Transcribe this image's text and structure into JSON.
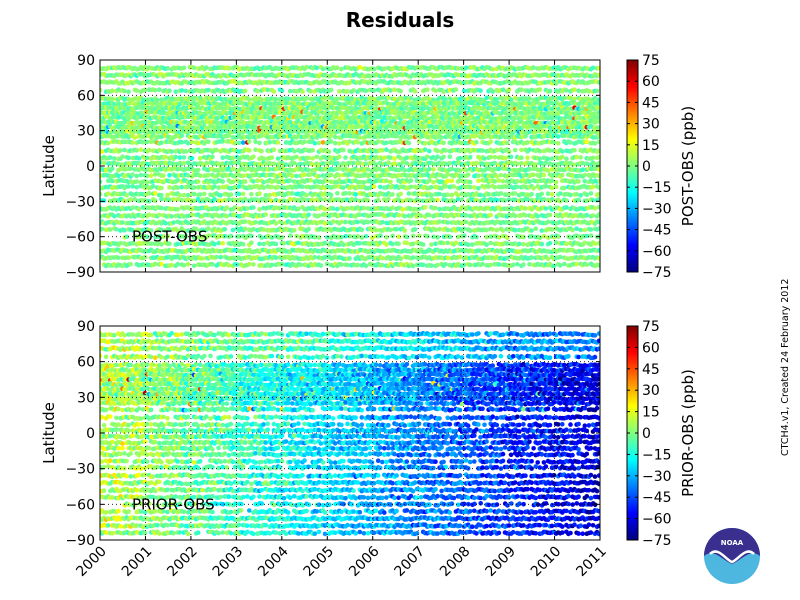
{
  "title": "Residuals",
  "colors": {
    "jet": [
      "#00007f",
      "#0000ff",
      "#007fff",
      "#00ffff",
      "#7fff7f",
      "#ffff00",
      "#ff7f00",
      "#ff0000",
      "#7f0000"
    ],
    "white_gaps": "#ffffff"
  },
  "chart_data": [
    {
      "type": "heatmap",
      "panel": "top",
      "annotation": "POST-OBS",
      "ylabel": "Latitude",
      "xlabel": "",
      "xlim": [
        2000,
        2011
      ],
      "ylim": [
        -90,
        90
      ],
      "yticks": [
        "90",
        "60",
        "30",
        "0",
        "−30",
        "−60",
        "−90"
      ],
      "ytick_values": [
        90,
        60,
        30,
        0,
        -30,
        -60,
        -90
      ],
      "xticks": [
        "2000",
        "2001",
        "2002",
        "2003",
        "2004",
        "2005",
        "2006",
        "2007",
        "2008",
        "2009",
        "2010",
        "2011"
      ],
      "xtick_values": [
        2000,
        2001,
        2002,
        2003,
        2004,
        2005,
        2006,
        2007,
        2008,
        2009,
        2010,
        2011
      ],
      "show_xtick_labels": false,
      "grid": true,
      "colorbar": {
        "label": "POST-OBS (ppb)",
        "range": [
          -75,
          75
        ],
        "ticks": [
          "75",
          "60",
          "45",
          "30",
          "15",
          "0",
          "−15",
          "−30",
          "−45",
          "−60",
          "−75"
        ],
        "tick_values": [
          75,
          60,
          45,
          30,
          15,
          0,
          -15,
          -30,
          -45,
          -60,
          -75
        ]
      },
      "value_trend": {
        "start_year": 2000,
        "end_year": 2011,
        "start_mean": 0,
        "end_mean": 0,
        "spread": 10
      }
    },
    {
      "type": "heatmap",
      "panel": "bottom",
      "annotation": "PRIOR-OBS",
      "ylabel": "Latitude",
      "xlabel": "",
      "xlim": [
        2000,
        2011
      ],
      "ylim": [
        -90,
        90
      ],
      "yticks": [
        "90",
        "60",
        "30",
        "0",
        "−30",
        "−60",
        "−90"
      ],
      "ytick_values": [
        90,
        60,
        30,
        0,
        -30,
        -60,
        -90
      ],
      "xticks": [
        "2000",
        "2001",
        "2002",
        "2003",
        "2004",
        "2005",
        "2006",
        "2007",
        "2008",
        "2009",
        "2010",
        "2011"
      ],
      "xtick_values": [
        2000,
        2001,
        2002,
        2003,
        2004,
        2005,
        2006,
        2007,
        2008,
        2009,
        2010,
        2011
      ],
      "show_xtick_labels": true,
      "grid": true,
      "colorbar": {
        "label": "PRIOR-OBS (ppb)",
        "range": [
          -75,
          75
        ],
        "ticks": [
          "75",
          "60",
          "45",
          "30",
          "15",
          "0",
          "−15",
          "−30",
          "−45",
          "−60",
          "−75"
        ],
        "tick_values": [
          75,
          60,
          45,
          30,
          15,
          0,
          -15,
          -30,
          -45,
          -60,
          -75
        ]
      },
      "value_trend": {
        "start_year": 2000,
        "end_year": 2011,
        "start_mean": 10,
        "end_mean": -62,
        "spread": 14
      }
    }
  ],
  "latitude_bands": [
    {
      "lat": 83,
      "start": 2000.0,
      "density": 0.9
    },
    {
      "lat": 77,
      "start": 2000.0,
      "density": 1.0
    },
    {
      "lat": 71,
      "start": 2000.0,
      "density": 1.0
    },
    {
      "lat": 64,
      "start": 2000.0,
      "density": 0.7
    },
    {
      "lat": 57,
      "start": 2000.0,
      "density": 0.9
    },
    {
      "lat": 53,
      "start": 2000.0,
      "density": 1.0
    },
    {
      "lat": 49,
      "start": 2000.0,
      "density": 1.0
    },
    {
      "lat": 45,
      "start": 2000.0,
      "density": 1.0
    },
    {
      "lat": 41,
      "start": 2000.0,
      "density": 1.0
    },
    {
      "lat": 37,
      "start": 2000.0,
      "density": 1.0
    },
    {
      "lat": 33,
      "start": 2000.0,
      "density": 1.0
    },
    {
      "lat": 29,
      "start": 2000.0,
      "density": 1.0
    },
    {
      "lat": 25,
      "start": 2000.0,
      "density": 0.9
    },
    {
      "lat": 20,
      "start": 2000.0,
      "density": 0.8
    },
    {
      "lat": 13,
      "start": 2000.0,
      "density": 0.8
    },
    {
      "lat": 7,
      "start": 2000.0,
      "density": 0.7
    },
    {
      "lat": 2,
      "start": 2000.0,
      "density": 0.9
    },
    {
      "lat": -3,
      "start": 2000.0,
      "density": 0.9
    },
    {
      "lat": -8,
      "start": 2000.0,
      "density": 0.9
    },
    {
      "lat": -13,
      "start": 2000.0,
      "density": 0.8
    },
    {
      "lat": -18,
      "start": 2000.0,
      "density": 0.8
    },
    {
      "lat": -24,
      "start": 2000.0,
      "density": 0.7
    },
    {
      "lat": -29,
      "start": 2000.0,
      "density": 0.7
    },
    {
      "lat": -36,
      "start": 2000.0,
      "density": 0.9
    },
    {
      "lat": -42,
      "start": 2000.0,
      "density": 0.9
    },
    {
      "lat": -48,
      "start": 2000.0,
      "density": 0.9
    },
    {
      "lat": -54,
      "start": 2000.0,
      "density": 0.8
    },
    {
      "lat": -60,
      "start": 2000.5,
      "density": 0.6
    },
    {
      "lat": -66,
      "start": 2000.0,
      "density": 0.8
    },
    {
      "lat": -72,
      "start": 2000.0,
      "density": 1.0
    },
    {
      "lat": -78,
      "start": 2000.0,
      "density": 0.9
    },
    {
      "lat": -84,
      "start": 2000.0,
      "density": 0.8
    }
  ],
  "credit": "CTCH4.v1,  Created 24 February 2012",
  "logo": {
    "icon": "noaa-logo",
    "text": "NOAA"
  }
}
